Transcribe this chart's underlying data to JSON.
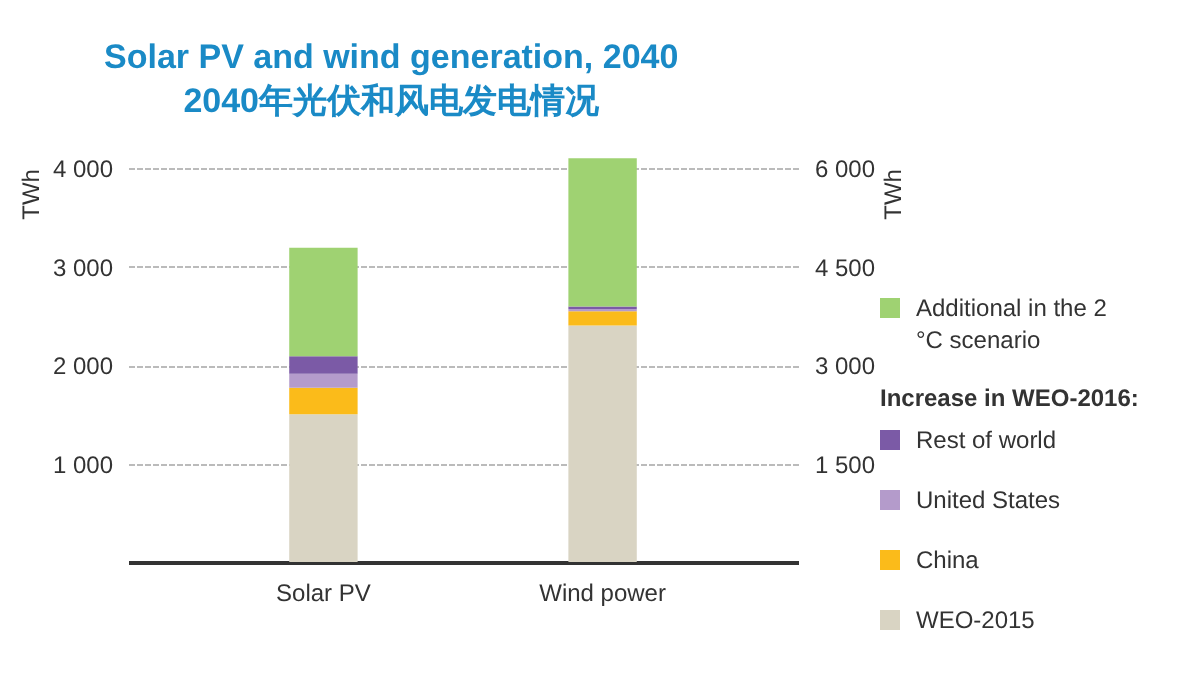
{
  "chart_data": {
    "type": "bar",
    "title": "Solar PV and wind generation, 2040",
    "subtitle": "2040年光伏和风电发电情况",
    "categories": [
      "Solar PV",
      "Wind power"
    ],
    "stacked": true,
    "ylabel": "TWh",
    "y2label": "TWh",
    "legend_title": "Increase in WEO-2016:",
    "ylim": [
      0,
      4000
    ],
    "yticks": [
      1000,
      2000,
      3000,
      4000
    ],
    "y2lim": [
      0,
      6000
    ],
    "y2ticks": [
      1500,
      3000,
      4500,
      6000
    ],
    "grid": "y",
    "legend": "right",
    "series": [
      {
        "name": "WEO-2015",
        "color": "#d9d4c3",
        "values": [
          1500,
          null
        ]
      },
      {
        "name": "China",
        "color": "#fbbb1a",
        "values": [
          270,
          null
        ]
      },
      {
        "name": "United States",
        "color": "#b49bcb",
        "values": [
          140,
          null
        ]
      },
      {
        "name": "Rest of world",
        "color": "#7b5aa6",
        "values": [
          180,
          null
        ]
      },
      {
        "name": "Additional in the 2 °C scenario",
        "color": "#9fd272",
        "values": [
          1100,
          null
        ]
      },
      {
        "color": "#d9d4c3",
        "axis": "y2",
        "values": [
          null,
          3600
        ]
      },
      {
        "color": "#fbbb1a",
        "axis": "y2",
        "values": [
          null,
          220
        ]
      },
      {
        "color": "#b49bcb",
        "axis": "y2",
        "values": [
          null,
          30
        ]
      },
      {
        "color": "#7b5aa6",
        "axis": "y2",
        "values": [
          null,
          40
        ]
      },
      {
        "color": "#9fd272",
        "axis": "y2",
        "values": [
          null,
          2260
        ]
      }
    ]
  }
}
